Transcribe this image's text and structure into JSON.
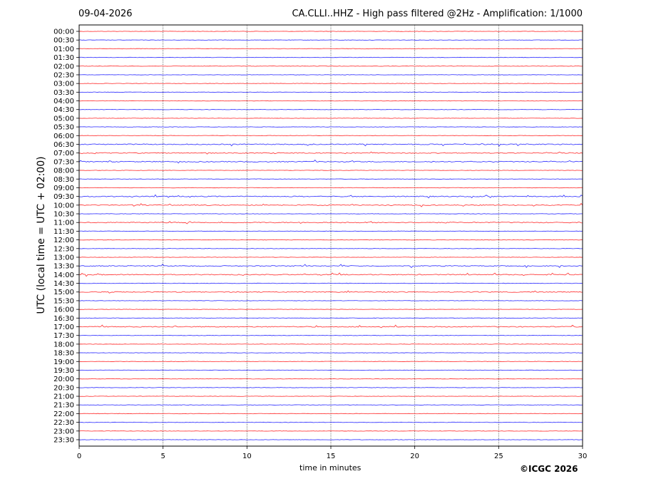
{
  "header": {
    "date": "09-04-2026",
    "title": "CA.CLLI..HHZ - High pass filtered @2Hz - Amplification: 1/1000"
  },
  "footer": {
    "copyright": "©ICGC 2026"
  },
  "chart_data": {
    "type": "line",
    "title": "CA.CLLI..HHZ - High pass filtered @2Hz - Amplification: 1/1000",
    "xlabel": "time in minutes",
    "ylabel": "UTC (local time = UTC + 02:00)",
    "xlim": [
      0,
      30
    ],
    "x_ticks": [
      "0",
      "5",
      "10",
      "15",
      "20",
      "25",
      "30"
    ],
    "x_grid": "dotted vertical lines every 5 minutes",
    "row_labels": [
      "00:00",
      "00:30",
      "01:00",
      "01:30",
      "02:00",
      "02:30",
      "03:00",
      "03:30",
      "04:00",
      "04:30",
      "05:00",
      "05:30",
      "06:00",
      "06:30",
      "07:00",
      "07:30",
      "08:00",
      "08:30",
      "09:00",
      "09:30",
      "10:00",
      "10:30",
      "11:00",
      "11:30",
      "12:00",
      "12:30",
      "13:00",
      "13:30",
      "14:00",
      "14:30",
      "15:00",
      "15:30",
      "16:00",
      "16:30",
      "17:00",
      "17:30",
      "18:00",
      "18:30",
      "19:00",
      "19:30",
      "20:00",
      "20:30",
      "21:00",
      "21:30",
      "22:00",
      "22:30",
      "23:00",
      "23:30"
    ],
    "trace_colors": [
      "#ff0000",
      "#0000ff"
    ],
    "noisy_rows": [
      "06:30",
      "07:00",
      "07:30",
      "09:30",
      "10:00",
      "11:00",
      "13:30",
      "14:00",
      "15:00",
      "17:00"
    ]
  }
}
